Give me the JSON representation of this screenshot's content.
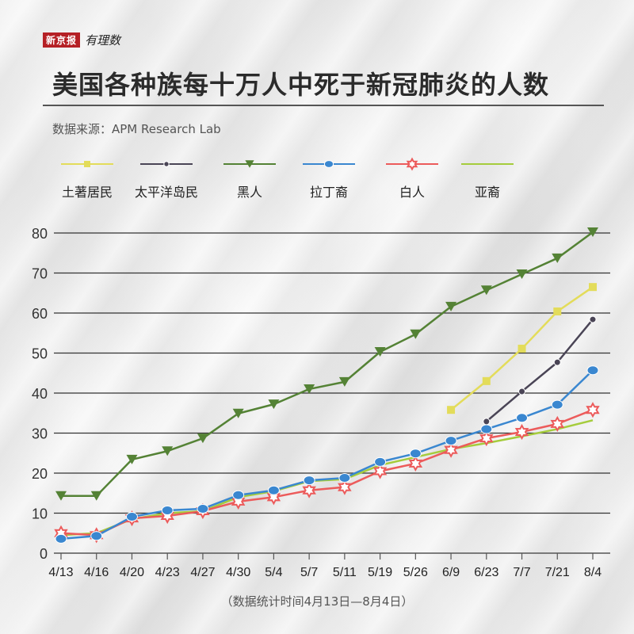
{
  "brand": {
    "name": "新京报",
    "sub": "有理数"
  },
  "header": {
    "title": "美国各种族每十万人中死于新冠肺炎的人数",
    "source": "数据来源：APM Research Lab"
  },
  "footnote": "（数据统计时间4月13日—8月4日）",
  "colors": {
    "native": "#e3dc5a",
    "pacific": "#4a4556",
    "black": "#548235",
    "latino": "#3a87d0",
    "white": "#ec5b5b",
    "asian": "#a5cc3c",
    "grid": "#333333"
  },
  "legend": [
    {
      "key": "native",
      "label": "土著居民",
      "marker": "square"
    },
    {
      "key": "pacific",
      "label": "太平洋岛民",
      "marker": "dot"
    },
    {
      "key": "black",
      "label": "黑人",
      "marker": "triangle-down"
    },
    {
      "key": "latino",
      "label": "拉丁裔",
      "marker": "ellipse"
    },
    {
      "key": "white",
      "label": "白人",
      "marker": "star"
    },
    {
      "key": "asian",
      "label": "亚裔",
      "marker": "none"
    }
  ],
  "chart_data": {
    "type": "line",
    "title": "美国各种族每十万人中死于新冠肺炎的人数",
    "subtitle": "数据来源：APM Research Lab",
    "xlabel": "",
    "ylabel": "",
    "categories": [
      "4/13",
      "4/16",
      "4/20",
      "4/23",
      "4/27",
      "4/30",
      "5/4",
      "5/7",
      "5/11",
      "5/19",
      "5/26",
      "6/9",
      "6/23",
      "7/7",
      "7/21",
      "8/4"
    ],
    "ylim": [
      0,
      80
    ],
    "yticks": [
      0,
      10,
      20,
      30,
      40,
      50,
      60,
      70,
      80
    ],
    "grid": true,
    "legend_position": "top",
    "annotation": "（数据统计时间4月13日—8月4日）",
    "series": [
      {
        "name": "土著居民",
        "key": "native",
        "values": [
          null,
          null,
          null,
          null,
          null,
          null,
          null,
          null,
          null,
          null,
          null,
          35.8,
          43.0,
          51.1,
          60.4,
          66.5
        ]
      },
      {
        "name": "太平洋岛民",
        "key": "pacific",
        "values": [
          null,
          null,
          null,
          null,
          null,
          null,
          null,
          null,
          null,
          null,
          null,
          null,
          32.9,
          40.4,
          47.7,
          58.4
        ]
      },
      {
        "name": "黑人",
        "key": "black",
        "values": [
          14.3,
          14.3,
          23.4,
          25.5,
          28.7,
          34.9,
          37.2,
          41.0,
          42.8,
          50.3,
          54.7,
          61.6,
          65.7,
          69.7,
          73.7,
          80.2
        ]
      },
      {
        "name": "拉丁裔",
        "key": "latino",
        "values": [
          3.6,
          4.3,
          9.1,
          10.7,
          11.1,
          14.5,
          15.7,
          18.2,
          18.8,
          22.8,
          24.9,
          28.1,
          31.0,
          33.8,
          37.1,
          45.7
        ]
      },
      {
        "name": "白人",
        "key": "white",
        "values": [
          5.0,
          4.5,
          8.7,
          9.3,
          10.5,
          12.9,
          14.0,
          15.7,
          16.5,
          20.5,
          22.4,
          25.8,
          28.7,
          30.3,
          32.3,
          35.8
        ]
      },
      {
        "name": "亚裔",
        "key": "asian",
        "values": [
          4.5,
          5.0,
          8.5,
          10.0,
          10.5,
          14.0,
          15.5,
          18.0,
          18.5,
          22.0,
          24.0,
          26.0,
          27.5,
          29.2,
          31.0,
          33.2
        ]
      }
    ]
  }
}
